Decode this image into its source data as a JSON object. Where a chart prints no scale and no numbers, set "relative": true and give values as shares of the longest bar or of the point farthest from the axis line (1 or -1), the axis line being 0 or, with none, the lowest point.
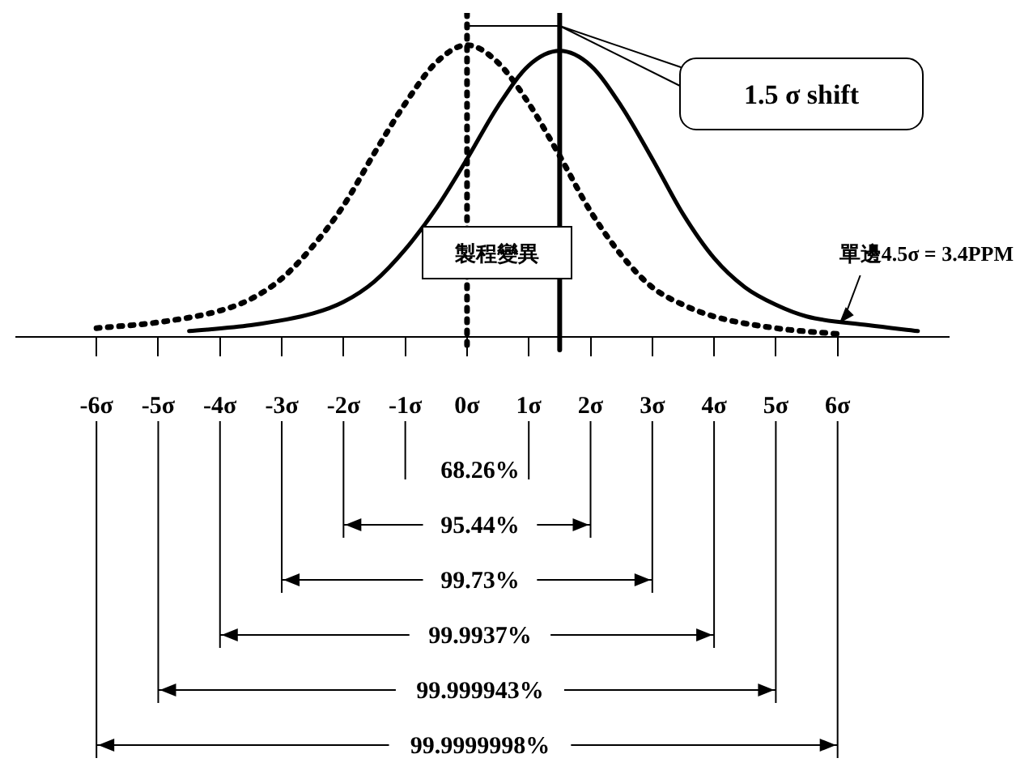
{
  "chart_data": {
    "type": "line",
    "relative": true,
    "grid": false,
    "legend": false,
    "marker": "none",
    "xlim": [
      -7.3,
      7.8
    ],
    "xticks": [
      {
        "value": -6,
        "label": "-6σ"
      },
      {
        "value": -5,
        "label": "-5σ"
      },
      {
        "value": -4,
        "label": "-4σ"
      },
      {
        "value": -3,
        "label": "-3σ"
      },
      {
        "value": -2,
        "label": "-2σ"
      },
      {
        "value": -1,
        "label": "-1σ"
      },
      {
        "value": 0,
        "label": "0σ"
      },
      {
        "value": 1,
        "label": "1σ"
      },
      {
        "value": 2,
        "label": "2σ"
      },
      {
        "value": 3,
        "label": "3σ"
      },
      {
        "value": 4,
        "label": "4σ"
      },
      {
        "value": 5,
        "label": "5σ"
      },
      {
        "value": 6,
        "label": "6σ"
      }
    ],
    "series": [
      {
        "color": "#000000",
        "line_style": "dotted",
        "x": [
          -6,
          -5,
          -4,
          -3.5,
          -3,
          -2.5,
          -2,
          -1.5,
          -1,
          -0.5,
          0,
          0.5,
          1,
          1.5,
          2,
          2.5,
          3,
          3.5,
          4,
          5,
          6
        ],
        "values": [
          0.03,
          0.05,
          0.09,
          0.13,
          0.2,
          0.31,
          0.45,
          0.63,
          0.8,
          0.94,
          1,
          0.94,
          0.8,
          0.62,
          0.43,
          0.28,
          0.17,
          0.11,
          0.07,
          0.03,
          0.01
        ]
      },
      {
        "color": "#000000",
        "line_style": "solid",
        "x": [
          -4.5,
          -3.5,
          -2.5,
          -2,
          -1.5,
          -1,
          -0.5,
          0,
          0.5,
          1,
          1.5,
          2,
          2.5,
          3,
          3.5,
          4,
          4.5,
          5,
          5.5,
          6.5,
          7.3
        ],
        "values": [
          0.02,
          0.04,
          0.08,
          0.12,
          0.19,
          0.3,
          0.44,
          0.61,
          0.79,
          0.93,
          0.98,
          0.93,
          0.79,
          0.61,
          0.42,
          0.27,
          0.17,
          0.11,
          0.07,
          0.04,
          0.02
        ]
      }
    ],
    "ref_lines": [
      {
        "axis": "x",
        "value": 0,
        "line_style": "dotted",
        "color": "#000000"
      },
      {
        "axis": "x",
        "value": 1.5,
        "line_style": "solid",
        "color": "#000000"
      }
    ],
    "annotations": [
      "1.5 σ shift",
      "製程變異",
      "單邊4.5σ = 3.4PPM",
      "68.26%",
      "95.44%",
      "99.73%",
      "99.9937%",
      "99.999943%",
      "99.9999998%"
    ]
  }
}
